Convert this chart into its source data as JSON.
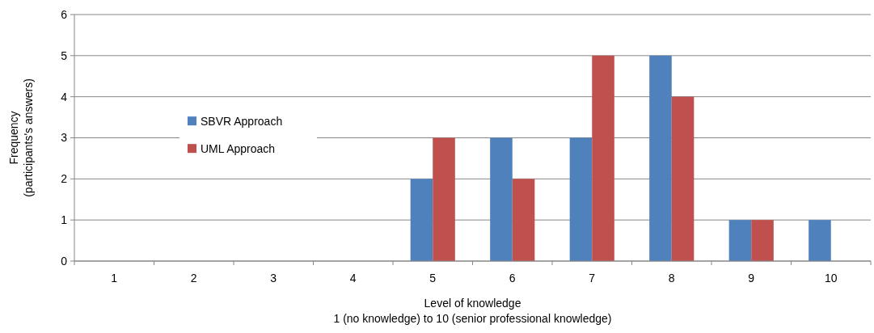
{
  "chart_data": {
    "type": "bar",
    "xlabel": "Level of knowledge\n1 (no knowledge) to 10 (senior professional knowledge)",
    "ylabel": "Frequency\n(participants's answers)",
    "categories": [
      "1",
      "2",
      "3",
      "4",
      "5",
      "6",
      "7",
      "8",
      "9",
      "10"
    ],
    "series": [
      {
        "name": "SBVR Approach",
        "color": "#4f81bd",
        "values": [
          0,
          0,
          0,
          0,
          2,
          3,
          3,
          5,
          1,
          1
        ]
      },
      {
        "name": "UML Approach",
        "color": "#c0504d",
        "values": [
          0,
          0,
          0,
          0,
          3,
          2,
          5,
          4,
          1,
          0
        ]
      }
    ],
    "ylim": [
      0,
      6
    ],
    "yticks": [
      0,
      1,
      2,
      3,
      4,
      5,
      6
    ],
    "grid": "y",
    "legend": "left"
  }
}
